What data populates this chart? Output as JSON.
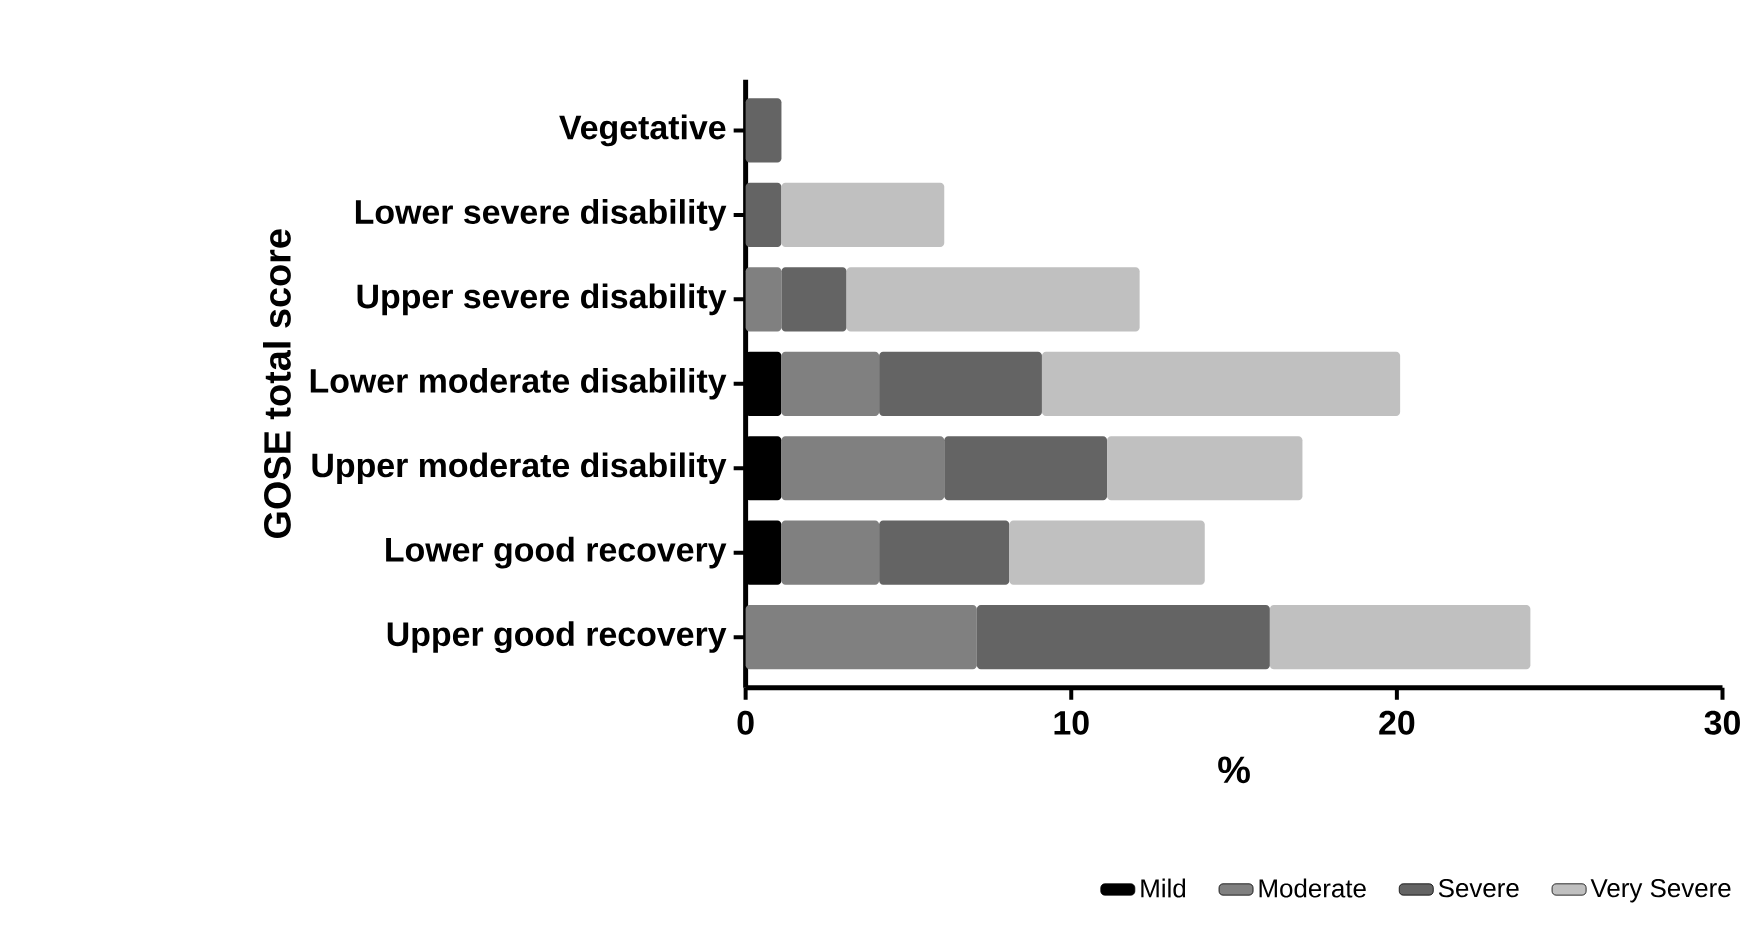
{
  "chart_data": {
    "type": "bar",
    "orientation": "horizontal",
    "stacked": true,
    "xlabel": "%",
    "ylabel": "GOSE total score",
    "categories": [
      "Vegetative",
      "Lower severe disability",
      "Upper severe disability",
      "Lower moderate disability",
      "Upper moderate disability",
      "Lower good recovery",
      "Upper good recovery"
    ],
    "series": [
      {
        "name": "Mild",
        "color": "#000000",
        "values": [
          null,
          null,
          null,
          1.1,
          1.1,
          1.1,
          null
        ]
      },
      {
        "name": "Moderate",
        "color": "#808080",
        "values": [
          null,
          null,
          1.1,
          3.0,
          5.0,
          3.0,
          7.1
        ]
      },
      {
        "name": "Severe",
        "color": "#646464",
        "values": [
          1.1,
          1.1,
          2.0,
          5.0,
          5.0,
          4.0,
          9.0
        ]
      },
      {
        "name": "Very Severe",
        "color": "#c0c0c0",
        "values": [
          null,
          5.0,
          9.0,
          11.0,
          6.0,
          6.0,
          8.0
        ]
      }
    ],
    "xlim": [
      0,
      30
    ],
    "xticks": [
      0,
      10,
      20,
      30
    ],
    "grid": false,
    "legend": "bottom right"
  }
}
